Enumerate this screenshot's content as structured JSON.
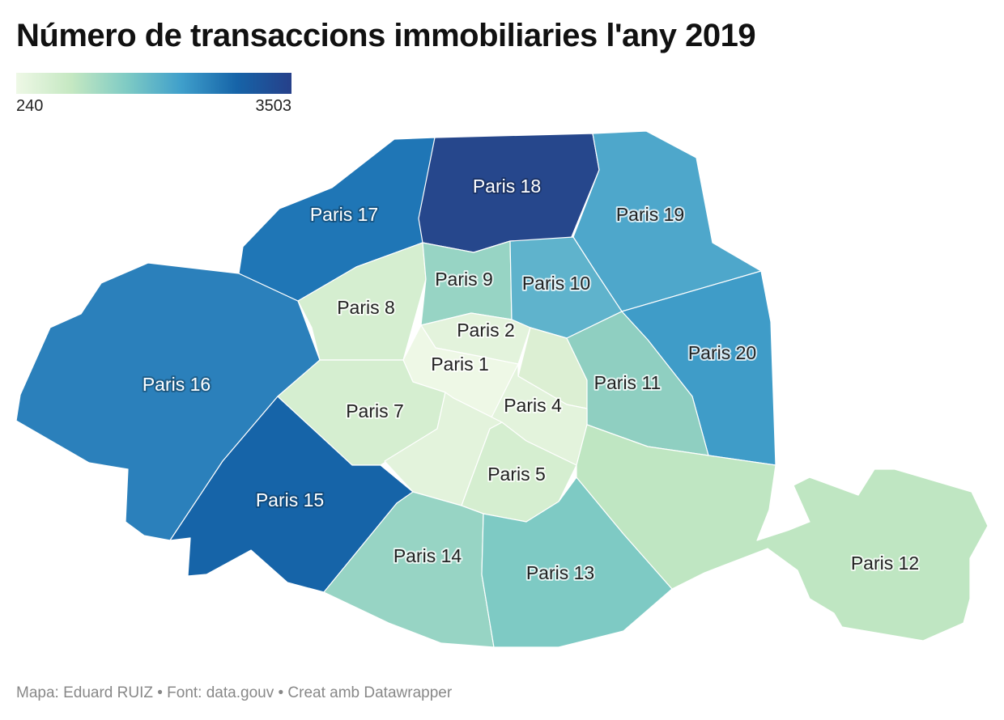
{
  "title": "Número de transaccions immobiliaries l'any 2019",
  "legend": {
    "min": "240",
    "max": "3503"
  },
  "footer": "Mapa: Eduard RUIZ • Font: data.gouv • Creat amb Datawrapper",
  "colors": {
    "min": "#eef8e6",
    "max": "#26408a"
  },
  "districts": [
    {
      "key": "p1",
      "label": "Paris 1",
      "fill": "#eef8e6"
    },
    {
      "key": "p2",
      "label": "Paris 2",
      "fill": "#e3f3dc"
    },
    {
      "key": "p3",
      "label": "",
      "fill": "#dcefd3"
    },
    {
      "key": "p4",
      "label": "Paris 4",
      "fill": "#e3f3dc"
    },
    {
      "key": "p5",
      "label": "Paris 5",
      "fill": "#d5eed0"
    },
    {
      "key": "p6",
      "label": "",
      "fill": "#e3f3dc"
    },
    {
      "key": "p7",
      "label": "Paris 7",
      "fill": "#d5eed0"
    },
    {
      "key": "p8",
      "label": "Paris 8",
      "fill": "#d5eed0"
    },
    {
      "key": "p9",
      "label": "Paris 9",
      "fill": "#97d4c4"
    },
    {
      "key": "p10",
      "label": "Paris 10",
      "fill": "#5fb3cc"
    },
    {
      "key": "p11",
      "label": "Paris 11",
      "fill": "#8fcfc1"
    },
    {
      "key": "p12",
      "label": "Paris 12",
      "fill": "#bfe6c2"
    },
    {
      "key": "p13",
      "label": "Paris 13",
      "fill": "#7ecac4"
    },
    {
      "key": "p14",
      "label": "Paris 14",
      "fill": "#97d4c4"
    },
    {
      "key": "p15",
      "label": "Paris 15",
      "fill": "#1664a8"
    },
    {
      "key": "p16",
      "label": "Paris 16",
      "fill": "#2b80bb"
    },
    {
      "key": "p17",
      "label": "Paris 17",
      "fill": "#1f76b6"
    },
    {
      "key": "p18",
      "label": "Paris 18",
      "fill": "#26478c"
    },
    {
      "key": "p19",
      "label": "Paris 19",
      "fill": "#4ea7cb"
    },
    {
      "key": "p20",
      "label": "Paris 20",
      "fill": "#3f9cc8"
    }
  ]
}
